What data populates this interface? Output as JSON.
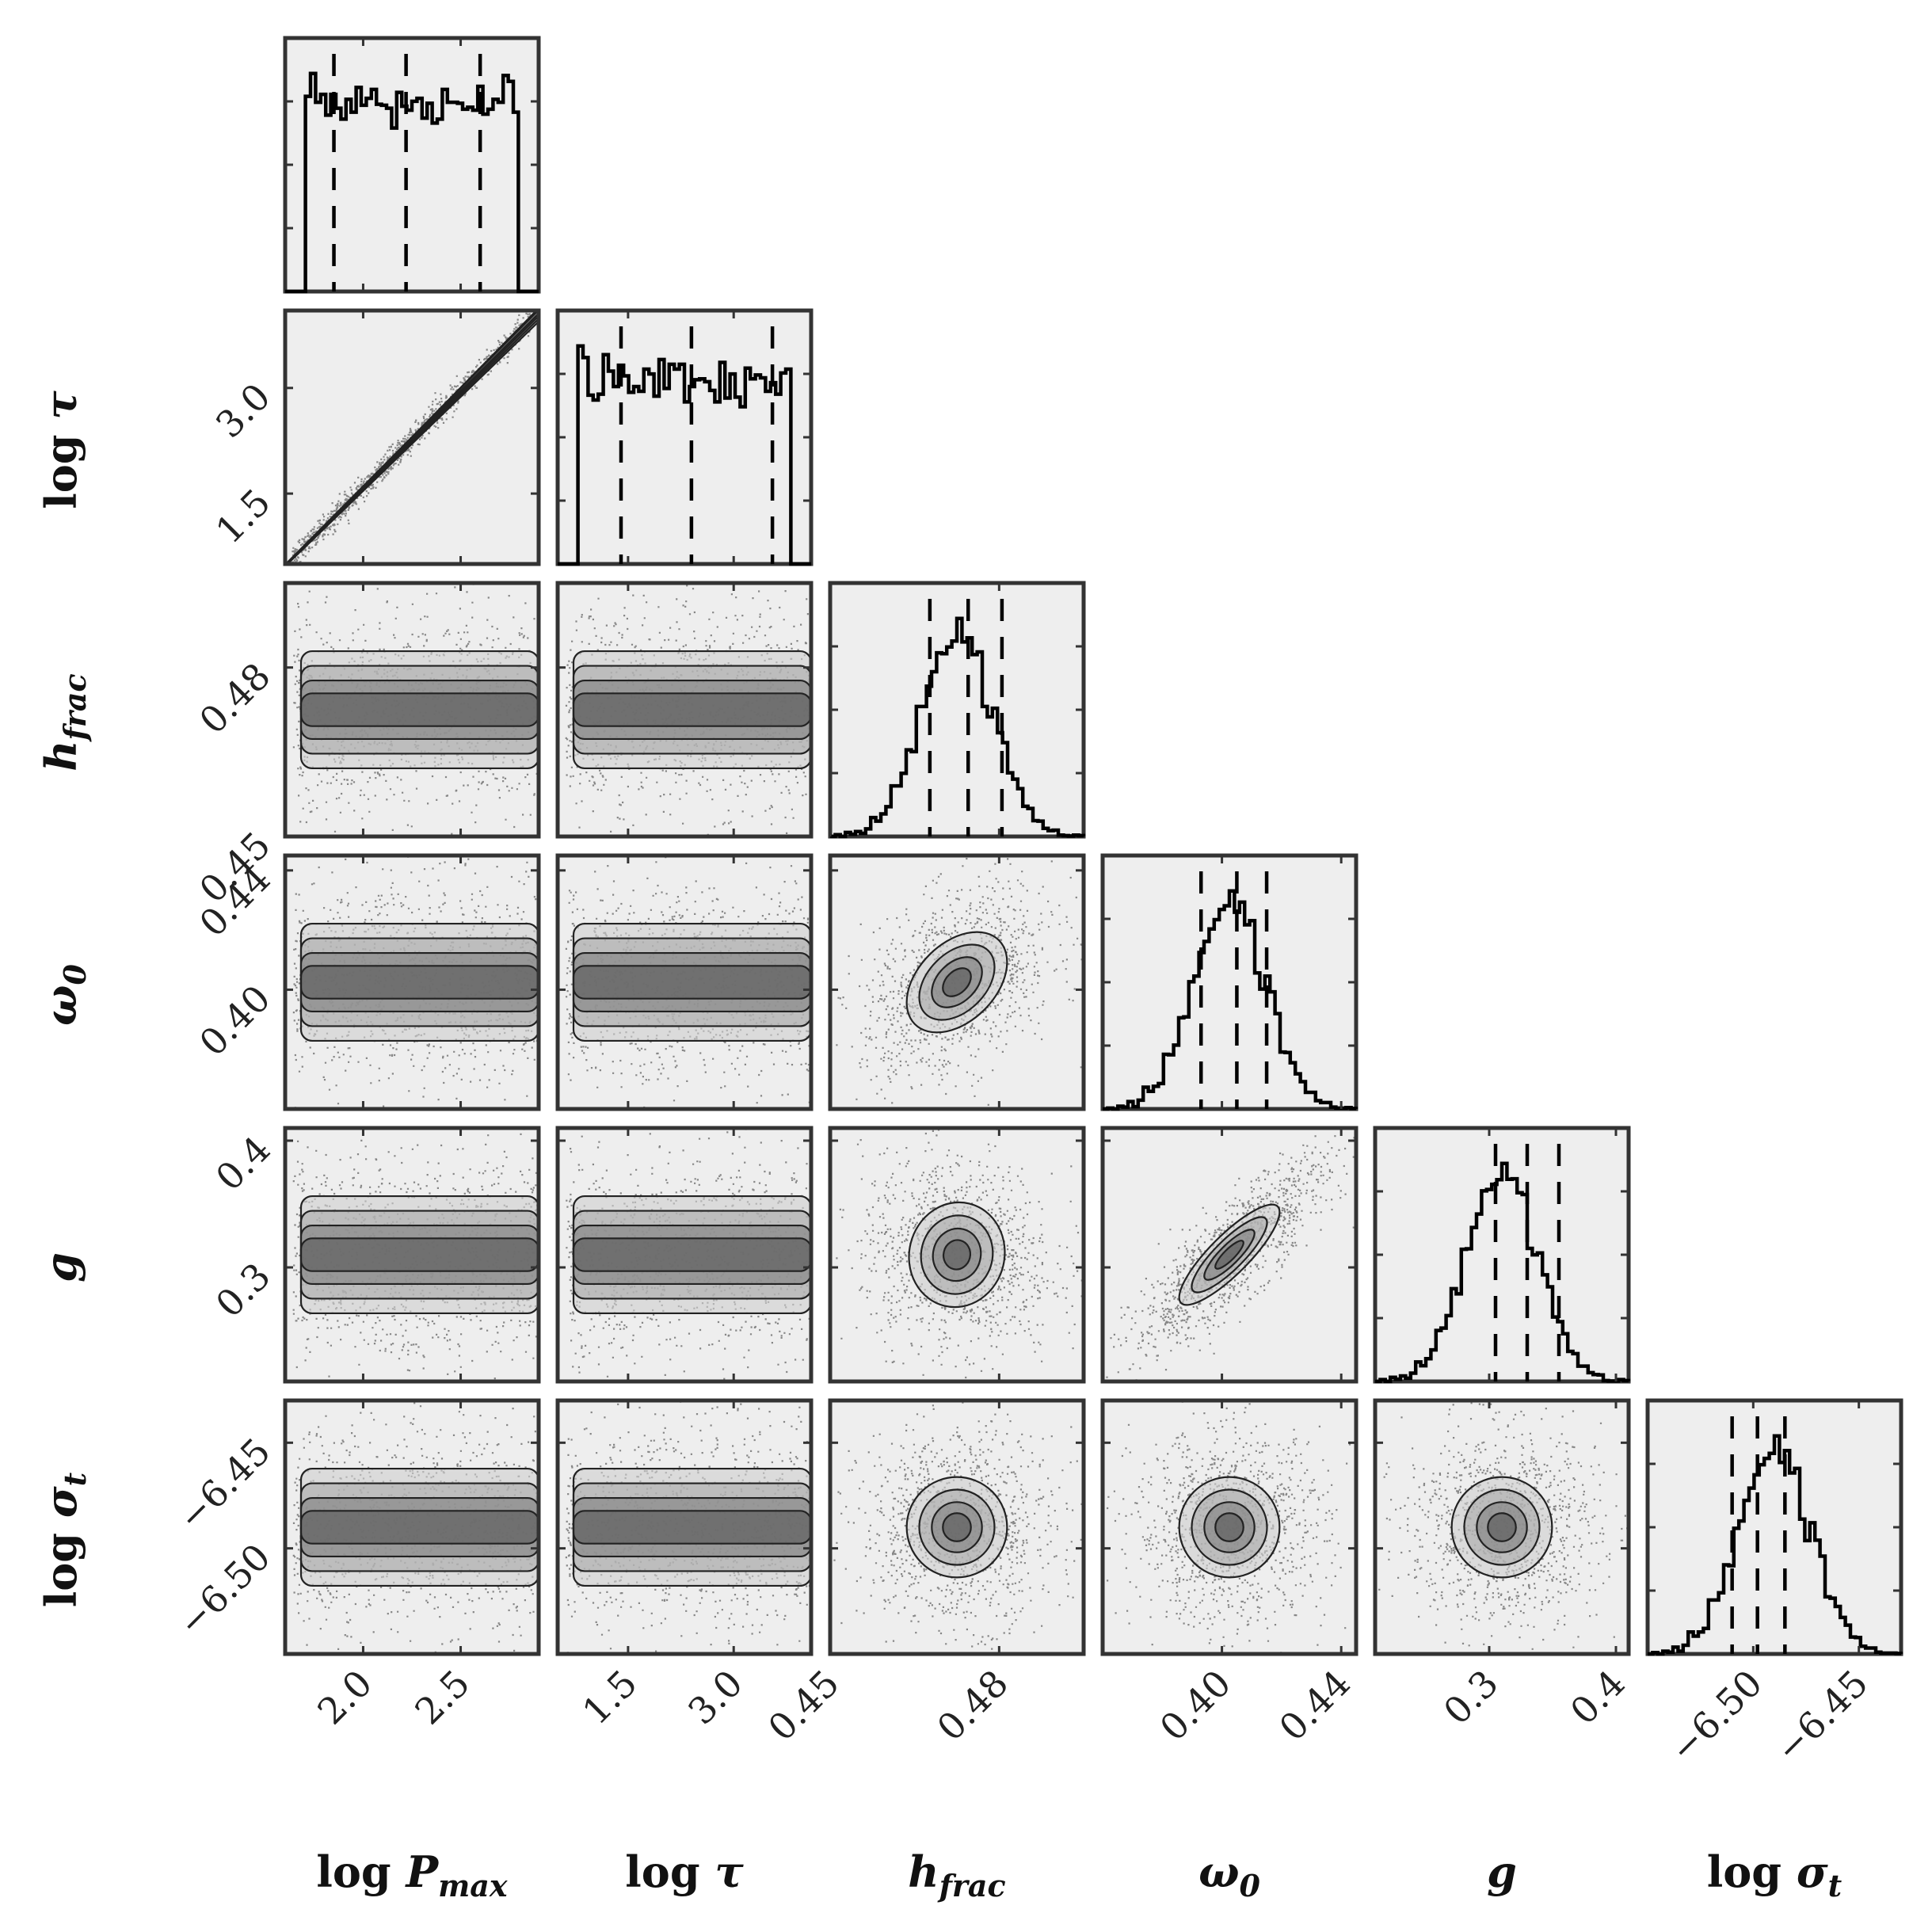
{
  "chart_data": {
    "type": "corner",
    "grid": false,
    "parameters": [
      {
        "key": "log_pmax",
        "label_main": "log ",
        "label_sym": "P",
        "label_sub": "max",
        "range": [
          1.6,
          2.9
        ],
        "ticks": [
          2.0,
          2.5
        ],
        "tick_labels": [
          "2.0",
          "2.5"
        ],
        "quantiles": [
          1.85,
          2.22,
          2.6
        ]
      },
      {
        "key": "log_tau",
        "label_main": "log ",
        "label_sym": "τ",
        "label_sub": "",
        "range": [
          0.5,
          4.1
        ],
        "ticks": [
          1.5,
          3.0
        ],
        "tick_labels": [
          "1.5",
          "3.0"
        ],
        "quantiles": [
          1.4,
          2.4,
          3.55
        ]
      },
      {
        "key": "h_frac",
        "label_main": "",
        "label_sym": "h",
        "label_sub": "frac",
        "range": [
          0.45,
          0.495
        ],
        "ticks": [
          0.45,
          0.48
        ],
        "tick_labels": [
          "0.45",
          "0.48"
        ],
        "quantiles": [
          0.4677,
          0.4745,
          0.4805
        ]
      },
      {
        "key": "omega_0",
        "label_main": "",
        "label_sym": "ω",
        "label_sub": "0",
        "range": [
          0.36,
          0.445
        ],
        "ticks": [
          0.4,
          0.44
        ],
        "tick_labels": [
          "0.40",
          "0.44"
        ],
        "quantiles": [
          0.393,
          0.405,
          0.415
        ]
      },
      {
        "key": "g",
        "label_main": "",
        "label_sym": "g",
        "label_sub": "",
        "range": [
          0.21,
          0.41
        ],
        "ticks": [
          0.3,
          0.4
        ],
        "tick_labels": [
          "0.3",
          "0.4"
        ],
        "quantiles": [
          0.305,
          0.33,
          0.355
        ]
      },
      {
        "key": "log_sigma_t",
        "label_main": "log ",
        "label_sym": "σ",
        "label_sub": "t",
        "range": [
          -6.55,
          -6.43
        ],
        "ticks": [
          -6.5,
          -6.45
        ],
        "tick_labels": [
          "−6.50",
          "−6.45"
        ],
        "quantiles": [
          -6.51,
          -6.498,
          -6.485
        ]
      }
    ],
    "marginal_shapes": [
      "flat",
      "flat",
      "gaussian",
      "gaussian",
      "gaussian",
      "gaussian"
    ],
    "correlations": [
      [
        1.0,
        0.99,
        0,
        0,
        0,
        0
      ],
      [
        0.99,
        1.0,
        0,
        0,
        0,
        0
      ],
      [
        0,
        0,
        1.0,
        0.4,
        -0.1,
        0
      ],
      [
        0,
        0,
        0.4,
        1.0,
        0.85,
        0
      ],
      [
        0,
        0,
        -0.1,
        0.85,
        1.0,
        0
      ],
      [
        0,
        0,
        0,
        0,
        0,
        1.0
      ]
    ],
    "colors": {
      "contour": "#111111",
      "frame": "#333333",
      "panel_bg": "#eeeeee",
      "histogram": "#000000"
    }
  }
}
